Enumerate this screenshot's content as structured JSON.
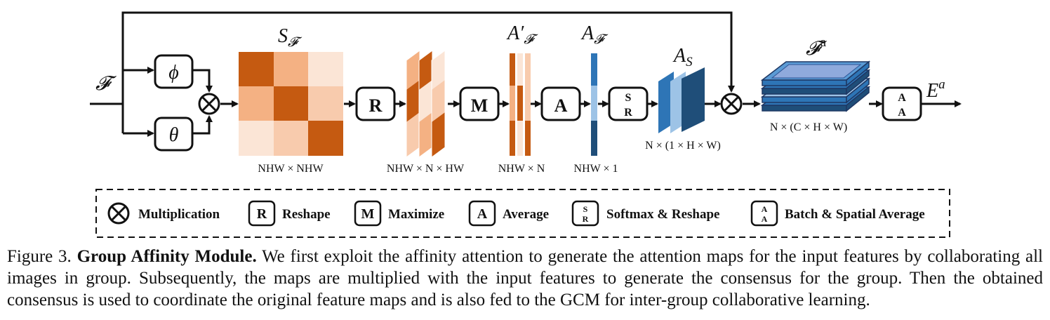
{
  "diagram": {
    "input_label": "𝓕",
    "phi_label": "ϕ",
    "theta_label": "θ",
    "affinity_label_main": "S",
    "affinity_label_sub": "𝓕",
    "affinity_dims": "NHW × NHW",
    "reshape_letter": "R",
    "reshaped_dims": "NHW × N × HW",
    "maximize_letter": "M",
    "max_label_main": "A′",
    "max_label_sub": "𝓕",
    "max_dims": "NHW × N",
    "average_letter": "A",
    "avg_label_main": "A",
    "avg_label_sub": "𝓕",
    "avg_dims": "NHW × 1",
    "softmax_letters": [
      "S",
      "R"
    ],
    "as_label_main": "A",
    "as_label_sub": "S",
    "as_dims": "N × (1 × H × W)",
    "fa_label_main": "𝓕",
    "fa_label_sup": "a",
    "fa_dims": "N × (C × H × W)",
    "batch_letters": [
      "A",
      "A"
    ],
    "output_label_main": "E",
    "output_label_sup": "a"
  },
  "legend": {
    "multiplication": "Multiplication",
    "reshape_letter": "R",
    "reshape": "Reshape",
    "maximize_letter": "M",
    "maximize": "Maximize",
    "average_letter": "A",
    "average": "Average",
    "softmax_letters": [
      "S",
      "R"
    ],
    "softmax": "Softmax & Reshape",
    "batch_letters": [
      "A",
      "A"
    ],
    "batch": "Batch & Spatial Average"
  },
  "caption": {
    "prefix": "Figure 3.",
    "title": "Group Affinity Module.",
    "body": "We first exploit the affinity attention to generate the attention maps for the input features by collaborating all images in group. Subsequently, the maps are multiplied with the input features to generate the consensus for the group. Then the obtained consensus is used to coordinate the original feature maps and is also fed to the GCM for inter-group collaborative learning."
  },
  "colors": {
    "orange_dark": "#c55a11",
    "orange_mid": "#f4b183",
    "orange_light": "#fbe5d6",
    "blue_dark": "#1f4e79",
    "blue_mid": "#2e75b6",
    "blue_light": "#9dc3e6",
    "blue_top": "#8faadc"
  }
}
